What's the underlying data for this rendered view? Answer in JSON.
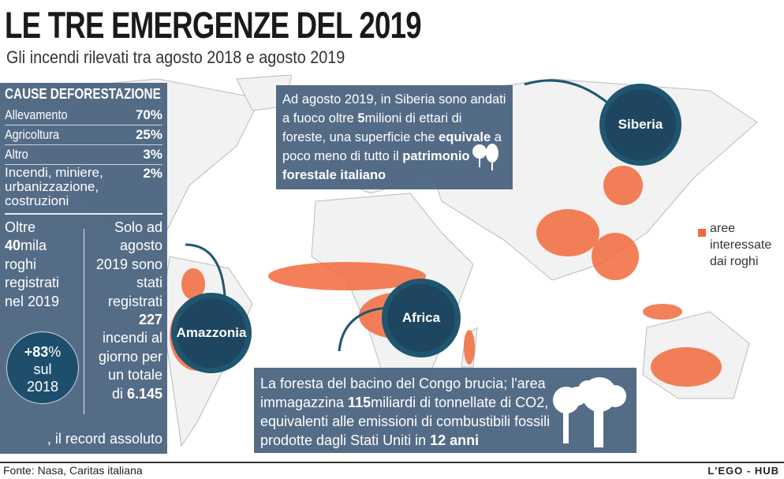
{
  "header": {
    "title": "LE TRE EMERGENZE DEL 2019",
    "subtitle": "Gli incendi rilevati tra agosto 2018 e agosto 2019"
  },
  "causes": {
    "heading": "CAUSE DEFORESTAZIONE",
    "items": [
      {
        "label": "Allevamento",
        "value": "70%"
      },
      {
        "label": "Agricoltura",
        "value": "25%"
      },
      {
        "label": "Altro",
        "value": "3%"
      },
      {
        "label": "Incendi, miniere, urbanizzazione, costruzioni",
        "value": "2%"
      }
    ]
  },
  "fires": {
    "left": {
      "pre": "Oltre",
      "num": "40",
      "post": "mila roghi registrati nel 2019"
    },
    "badge": {
      "num": "+83",
      "pct": "%",
      "line2": "sul",
      "line3": "2018"
    },
    "right": {
      "pre": "Solo ad agosto 2019 sono stati registrati",
      "num": "227",
      "mid": "incendi al giorno per un totale",
      "di": "di ",
      "total": "6.145",
      "tail": ", il record assoluto"
    }
  },
  "siberia": {
    "label": "Siberia",
    "t1": "Ad agosto 2019, in Siberia sono andati a fuoco oltre ",
    "b1": "5",
    "t2": "milioni di ettari di foreste, una superficie che ",
    "b2": "equivale",
    "t3": " a poco meno di tutto il ",
    "b3": "patrimonio forestale italiano"
  },
  "africa": {
    "label": "Africa",
    "t1": "La foresta del bacino del Congo brucia; l'area immagazzina ",
    "b1": "115",
    "t2": "miliardi di tonnellate di CO2, equivalenti alle emissioni di combustibili fossili prodotte dagli Stati Uniti in ",
    "b2": "12 anni"
  },
  "amazzonia": {
    "label": "Amazzonia"
  },
  "legend": {
    "label": "aree interessate dai roghi",
    "color": "#f26a3c"
  },
  "footer": {
    "source": "Fonte: Nasa, Caritas italiana",
    "brand": "L'EGO - HUB"
  }
}
